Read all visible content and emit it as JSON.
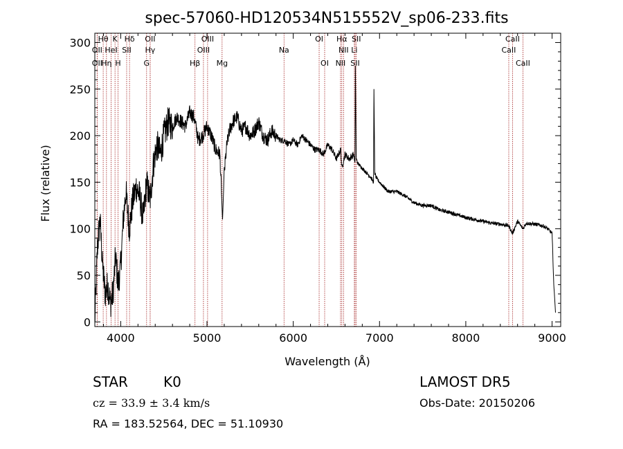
{
  "chart_data": {
    "type": "line",
    "title": "spec-57060-HD120534N515552V_sp06-233.fits",
    "xlabel": "Wavelength (Å)",
    "ylabel": "Flux (relative)",
    "xlim": [
      3700,
      9100
    ],
    "ylim": [
      -5,
      310
    ],
    "xticks": [
      4000,
      5000,
      6000,
      7000,
      8000,
      9000
    ],
    "yticks": [
      0,
      50,
      100,
      150,
      200,
      250,
      300
    ],
    "grid": false,
    "colors": {
      "spectrum": "#000000",
      "lines": "#a01818"
    },
    "series": [
      {
        "x": [
          3700,
          3730,
          3760,
          3790,
          3820,
          3850,
          3880,
          3910,
          3940,
          3970,
          4000,
          4030,
          4060,
          4100,
          4140,
          4180,
          4220,
          4260,
          4300,
          4340,
          4380,
          4420,
          4460,
          4500,
          4550,
          4600,
          4650,
          4700,
          4750,
          4800,
          4850,
          4900,
          4950,
          5000,
          5050,
          5100,
          5150,
          5180,
          5200,
          5230,
          5260,
          5300,
          5350,
          5400,
          5450,
          5500,
          5550,
          5600,
          5650,
          5700,
          5750,
          5800,
          5850,
          5890,
          5900,
          5950,
          6000,
          6050,
          6100,
          6150,
          6200,
          6250,
          6300,
          6350,
          6400,
          6450,
          6500,
          6550,
          6563,
          6600,
          6650,
          6700,
          6715,
          6720,
          6730,
          6750,
          6800,
          6850,
          6900,
          6930,
          6935,
          6945,
          6960,
          7000,
          7100,
          7200,
          7300,
          7400,
          7500,
          7600,
          7700,
          7800,
          7900,
          8000,
          8100,
          8200,
          8300,
          8400,
          8500,
          8540,
          8600,
          8663,
          8700,
          8800,
          8900,
          8950,
          9000,
          9020,
          9040,
          9042
        ],
        "y": [
          0,
          80,
          110,
          60,
          30,
          40,
          20,
          30,
          70,
          40,
          60,
          110,
          140,
          100,
          130,
          145,
          135,
          110,
          150,
          130,
          170,
          190,
          180,
          200,
          215,
          210,
          220,
          215,
          210,
          225,
          220,
          195,
          200,
          210,
          200,
          185,
          180,
          110,
          160,
          190,
          205,
          215,
          220,
          205,
          210,
          200,
          205,
          215,
          200,
          195,
          205,
          200,
          195,
          195,
          195,
          190,
          195,
          190,
          200,
          195,
          190,
          185,
          185,
          180,
          190,
          185,
          175,
          185,
          165,
          180,
          175,
          180,
          170,
          275,
          175,
          170,
          165,
          160,
          155,
          150,
          250,
          160,
          155,
          150,
          140,
          140,
          135,
          128,
          125,
          125,
          120,
          118,
          115,
          112,
          110,
          108,
          106,
          105,
          103,
          95,
          108,
          100,
          106,
          105,
          103,
          100,
          95,
          40,
          10,
          5
        ]
      }
    ],
    "annotations": [
      {
        "label": "Hθ",
        "x": 3797,
        "row": 0
      },
      {
        "label": "K",
        "x": 3934,
        "row": 0
      },
      {
        "label": "Hδ",
        "x": 4102,
        "row": 0
      },
      {
        "label": "OII",
        "x": 4341,
        "row": 0
      },
      {
        "label": "OIII",
        "x": 5007,
        "row": 0
      },
      {
        "label": "OI",
        "x": 6300,
        "row": 0
      },
      {
        "label": "Hα",
        "x": 6563,
        "row": 0
      },
      {
        "label": "SII",
        "x": 6731,
        "row": 0
      },
      {
        "label": "CaII",
        "x": 8542,
        "row": 0
      },
      {
        "label": "OII",
        "x": 3727,
        "row": 1
      },
      {
        "label": "HeI",
        "x": 3889,
        "row": 1
      },
      {
        "label": "SII",
        "x": 4069,
        "row": 1
      },
      {
        "label": "Hγ",
        "x": 4341,
        "row": 1
      },
      {
        "label": "OIII",
        "x": 4959,
        "row": 1
      },
      {
        "label": "Na",
        "x": 5893,
        "row": 1
      },
      {
        "label": "NII",
        "x": 6583,
        "row": 1
      },
      {
        "label": "Li",
        "x": 6708,
        "row": 1
      },
      {
        "label": "CaII",
        "x": 8498,
        "row": 1
      },
      {
        "label": "OII",
        "x": 3727,
        "row": 2
      },
      {
        "label": "Hη",
        "x": 3835,
        "row": 2
      },
      {
        "label": "H",
        "x": 3969,
        "row": 2
      },
      {
        "label": "G",
        "x": 4300,
        "row": 2
      },
      {
        "label": "Hβ",
        "x": 4861,
        "row": 2
      },
      {
        "label": "Mg",
        "x": 5175,
        "row": 2
      },
      {
        "label": "OI",
        "x": 6364,
        "row": 2
      },
      {
        "label": "NII",
        "x": 6548,
        "row": 2
      },
      {
        "label": "SII",
        "x": 6717,
        "row": 2
      },
      {
        "label": "CaII",
        "x": 8662,
        "row": 2
      }
    ]
  },
  "info": {
    "object_class": "STAR",
    "subclass": "K0",
    "survey": "LAMOST  DR5",
    "redshift_line": "cz = 33.9 ± 3.4 km/s",
    "obs_date": "Obs-Date: 20150206",
    "coords": "RA = 183.52564, DEC =  51.10930"
  }
}
